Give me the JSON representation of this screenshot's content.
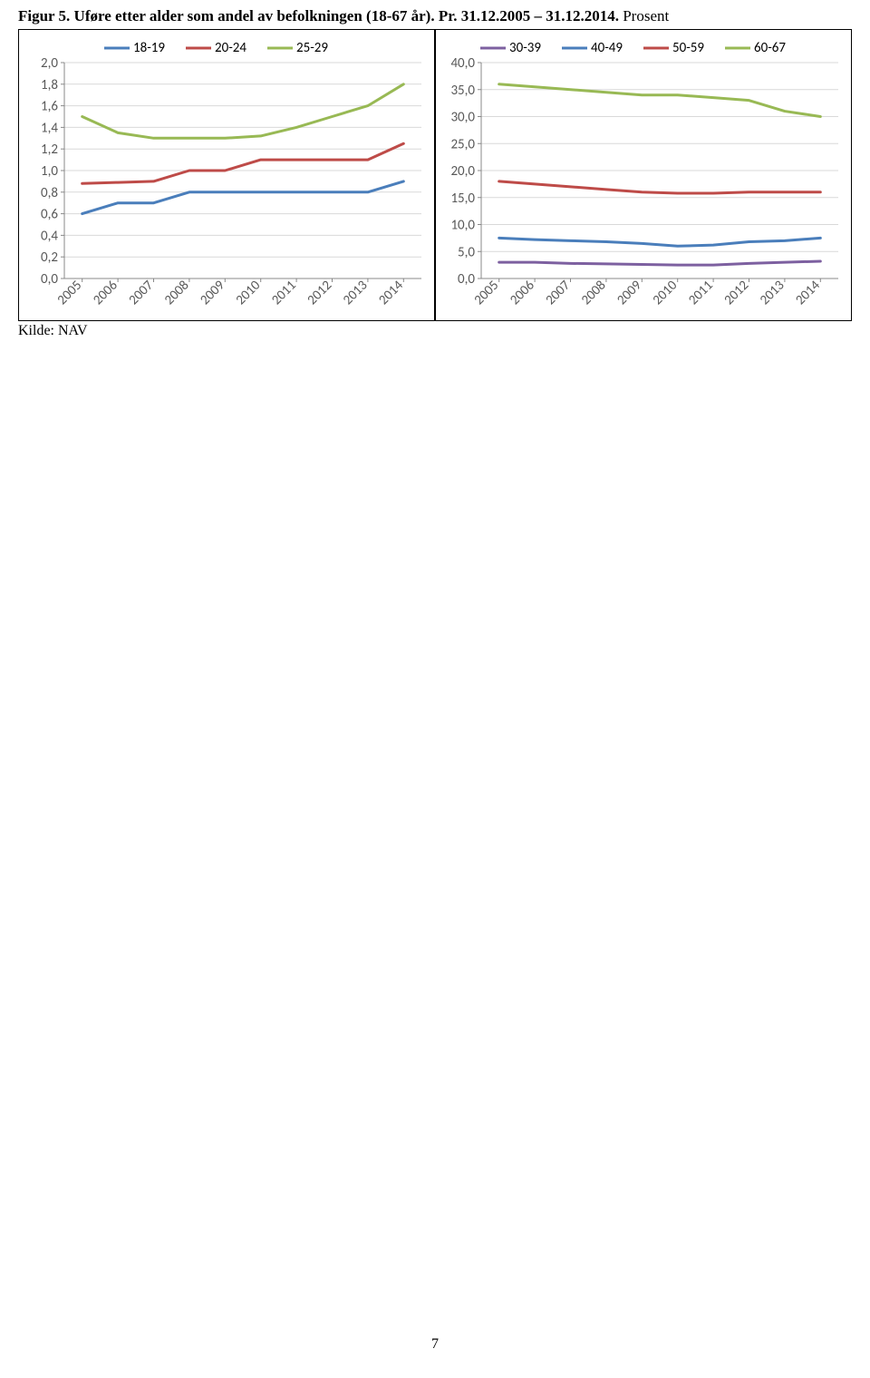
{
  "figure_title_bold": "Figur 5. Uføre etter alder som andel av befolkningen (18-67 år). Pr. 31.12.2005 – 31.12.2014.",
  "figure_title_rest": "  Prosent",
  "source_label": "Kilde: NAV",
  "page_number": "7",
  "years": [
    "2005",
    "2006",
    "2007",
    "2008",
    "2009",
    "2010",
    "2011",
    "2012",
    "2013",
    "2014"
  ],
  "colors": {
    "blue": "#4a7ebb",
    "red": "#be4b48",
    "green": "#98b954",
    "purple": "#7d60a0",
    "axis": "#888888",
    "grid": "#d9d9d9",
    "tick": "#888888",
    "text": "#595959",
    "border": "#888888",
    "background": "#ffffff"
  },
  "chart_left": {
    "type": "line",
    "ylim": [
      0.0,
      2.0
    ],
    "ytick_step": 0.2,
    "ytick_labels": [
      "0,0",
      "0,2",
      "0,4",
      "0,6",
      "0,8",
      "1,0",
      "1,2",
      "1,4",
      "1,6",
      "1,8",
      "2,0"
    ],
    "line_width": 3,
    "legend": [
      {
        "label": "18-19",
        "color": "#4a7ebb"
      },
      {
        "label": "20-24",
        "color": "#be4b48"
      },
      {
        "label": "25-29",
        "color": "#98b954"
      }
    ],
    "series": {
      "s18_19": {
        "color": "#4a7ebb",
        "values": [
          0.6,
          0.7,
          0.7,
          0.8,
          0.8,
          0.8,
          0.8,
          0.8,
          0.8,
          0.9
        ]
      },
      "s20_24": {
        "color": "#be4b48",
        "values": [
          0.88,
          0.89,
          0.9,
          1.0,
          1.0,
          1.1,
          1.1,
          1.1,
          1.1,
          1.25
        ]
      },
      "s25_29": {
        "color": "#98b954",
        "values": [
          1.5,
          1.35,
          1.3,
          1.3,
          1.3,
          1.32,
          1.4,
          1.5,
          1.6,
          1.8
        ]
      }
    }
  },
  "chart_right": {
    "type": "line",
    "ylim": [
      0.0,
      40.0
    ],
    "ytick_step": 5.0,
    "ytick_labels": [
      "0,0",
      "5,0",
      "10,0",
      "15,0",
      "20,0",
      "25,0",
      "30,0",
      "35,0",
      "40,0"
    ],
    "line_width": 3,
    "legend": [
      {
        "label": "30-39",
        "color": "#7d60a0"
      },
      {
        "label": "40-49",
        "color": "#4a7ebb"
      },
      {
        "label": "50-59",
        "color": "#be4b48"
      },
      {
        "label": "60-67",
        "color": "#98b954"
      }
    ],
    "series": {
      "s30_39": {
        "color": "#7d60a0",
        "values": [
          3.0,
          3.0,
          2.8,
          2.7,
          2.6,
          2.5,
          2.5,
          2.8,
          3.0,
          3.2
        ]
      },
      "s40_49": {
        "color": "#4a7ebb",
        "values": [
          7.5,
          7.2,
          7.0,
          6.8,
          6.5,
          6.0,
          6.2,
          6.8,
          7.0,
          7.5
        ]
      },
      "s50_59": {
        "color": "#be4b48",
        "values": [
          18.0,
          17.5,
          17.0,
          16.5,
          16.0,
          15.8,
          15.8,
          16.0,
          16.0,
          16.0
        ]
      },
      "s60_67": {
        "color": "#98b954",
        "values": [
          36.0,
          35.5,
          35.0,
          34.5,
          34.0,
          34.0,
          33.5,
          33.0,
          31.0,
          30.0
        ]
      }
    }
  }
}
